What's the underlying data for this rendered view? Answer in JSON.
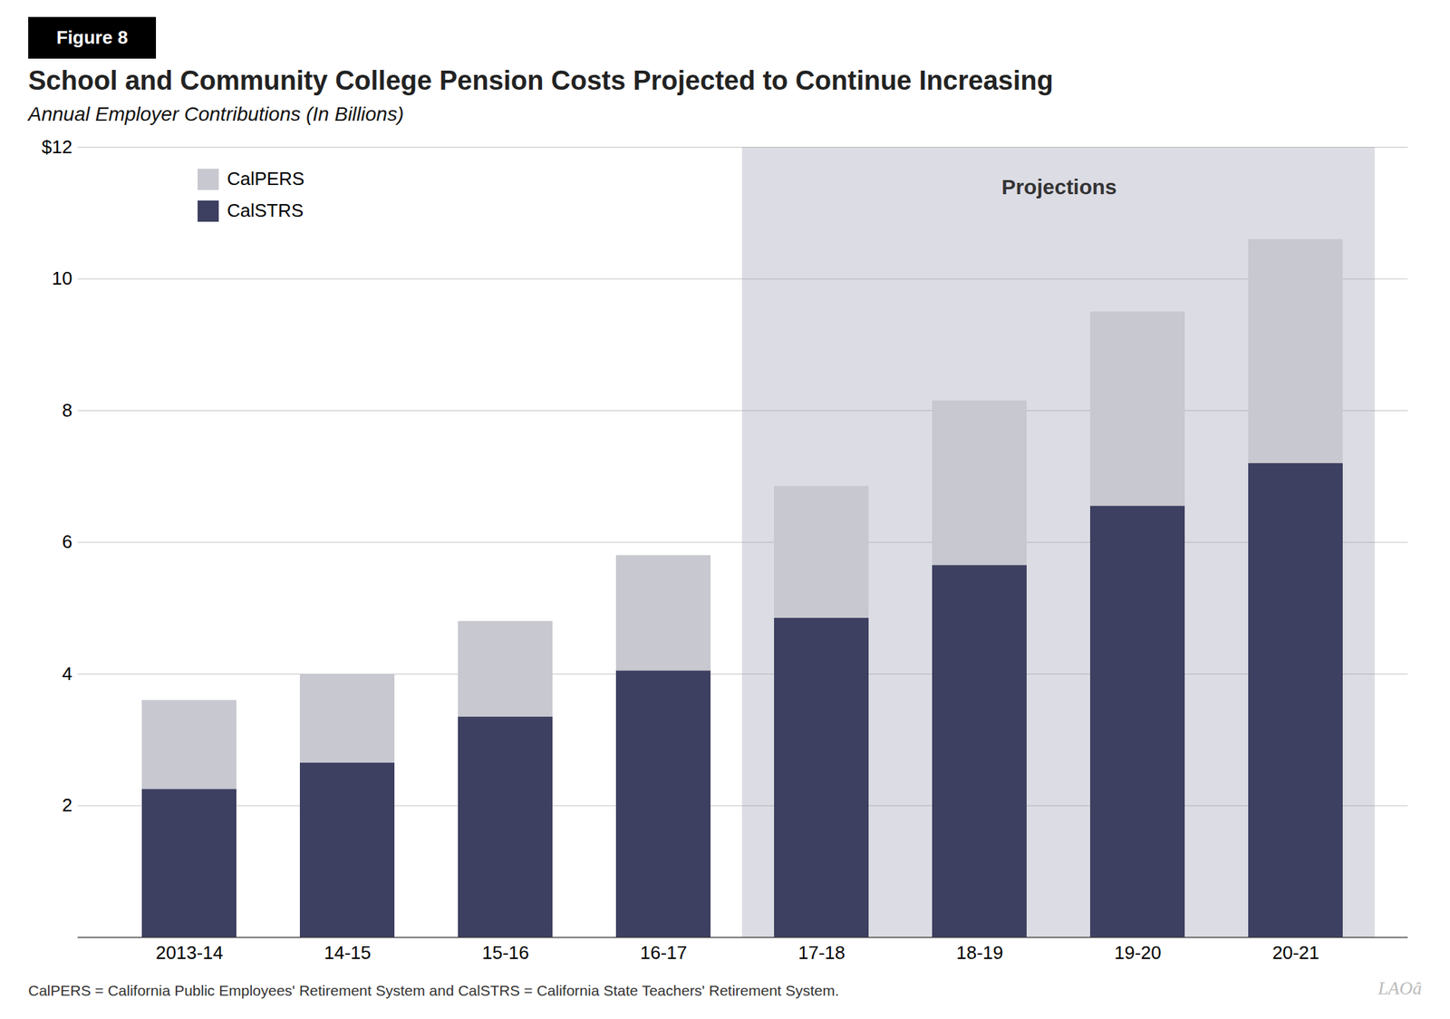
{
  "chart_data": {
    "type": "bar",
    "figure_label": "Figure 8",
    "title": "School and Community College Pension Costs Projected to Continue Increasing",
    "subtitle": "Annual Employer Contributions (In Billions)",
    "categories": [
      "2013-14",
      "14-15",
      "15-16",
      "16-17",
      "17-18",
      "18-19",
      "19-20",
      "20-21"
    ],
    "series": [
      {
        "name": "CalSTRS",
        "color": "#3d4060",
        "values": [
          2.25,
          2.65,
          3.35,
          4.05,
          4.85,
          5.65,
          6.55,
          7.2
        ]
      },
      {
        "name": "CalPERS",
        "color": "#c8c8d0",
        "values": [
          1.35,
          1.35,
          1.45,
          1.75,
          2.0,
          2.5,
          2.95,
          3.4
        ]
      }
    ],
    "stacked": true,
    "ylim": [
      0,
      12
    ],
    "yticks": [
      {
        "value": 0,
        "label": ""
      },
      2,
      4,
      6,
      8,
      10,
      {
        "value": 12,
        "label": "$12"
      }
    ],
    "grid": true,
    "legend": "upper left",
    "annotations": [
      {
        "text": "Projections",
        "x_start": "17-18",
        "x_end": "20-21",
        "color": "#dcdce4"
      }
    ],
    "footnote": "CalPERS = California Public Employees' Retirement System and CalSTRS = California State Teachers' Retirement System.",
    "logo": "LAOâ"
  }
}
